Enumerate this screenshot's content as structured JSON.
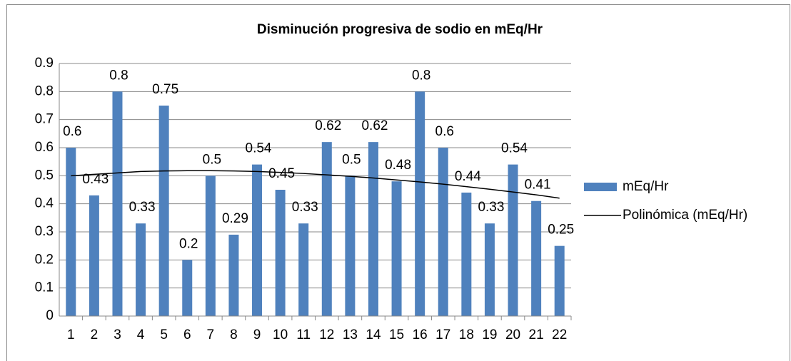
{
  "chart_data": {
    "type": "bar",
    "title": "Disminución progresiva de sodio en mEq/Hr",
    "categories": [
      "1",
      "2",
      "3",
      "4",
      "5",
      "6",
      "7",
      "8",
      "9",
      "10",
      "11",
      "12",
      "13",
      "14",
      "15",
      "16",
      "17",
      "18",
      "19",
      "20",
      "21",
      "22"
    ],
    "series": [
      {
        "name": "mEq/Hr",
        "type": "bar",
        "color": "#4f81bd",
        "values": [
          0.6,
          0.43,
          0.8,
          0.33,
          0.75,
          0.2,
          0.5,
          0.29,
          0.54,
          0.45,
          0.33,
          0.62,
          0.5,
          0.62,
          0.48,
          0.8,
          0.6,
          0.44,
          0.33,
          0.54,
          0.41,
          0.25
        ]
      },
      {
        "name": "Polinómica (mEq/Hr)",
        "type": "line",
        "color": "#000000",
        "values": [
          0.5,
          0.505,
          0.51,
          0.515,
          0.517,
          0.518,
          0.518,
          0.517,
          0.515,
          0.512,
          0.508,
          0.503,
          0.498,
          0.492,
          0.485,
          0.478,
          0.47,
          0.461,
          0.452,
          0.442,
          0.432,
          0.42
        ]
      }
    ],
    "ylim": [
      0,
      0.9
    ],
    "yticks": [
      0,
      0.1,
      0.2,
      0.3,
      0.4,
      0.5,
      0.6,
      0.7,
      0.8,
      0.9
    ],
    "grid": true,
    "legend": "right"
  }
}
